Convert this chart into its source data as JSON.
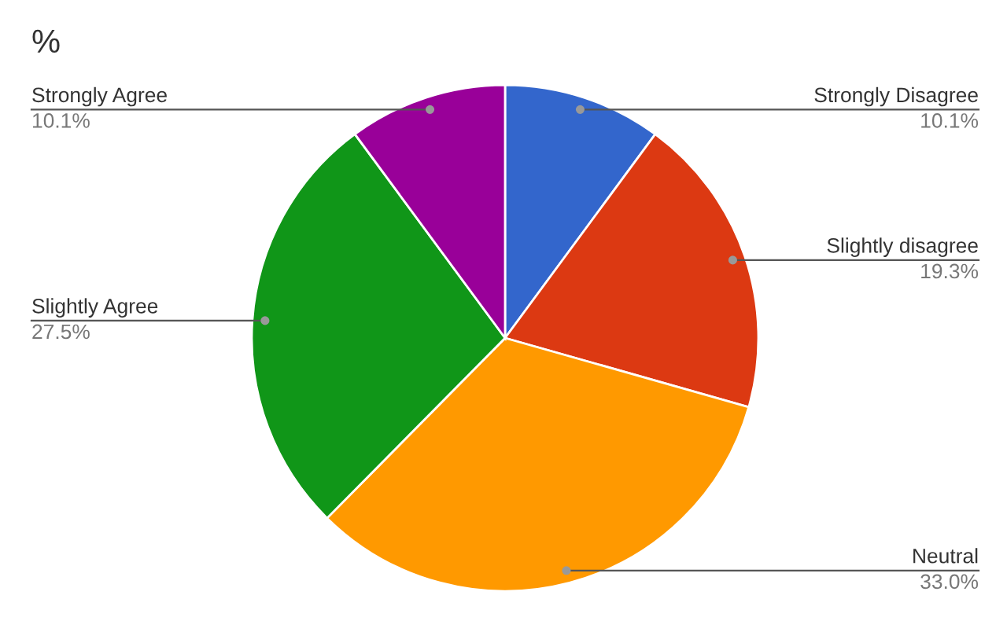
{
  "chart_data": {
    "type": "pie",
    "title": "%",
    "categories": [
      "Strongly Disagree",
      "Slightly disagree",
      "Neutral",
      "Slightly Agree",
      "Strongly Agree"
    ],
    "values": [
      10.1,
      19.3,
      33.0,
      27.5,
      10.1
    ],
    "value_labels": [
      "10.1%",
      "19.3%",
      "33.0%",
      "27.5%",
      "10.1%"
    ],
    "colors": [
      "#3366cc",
      "#dc3912",
      "#ff9900",
      "#109618",
      "#990099"
    ],
    "legend": false
  }
}
